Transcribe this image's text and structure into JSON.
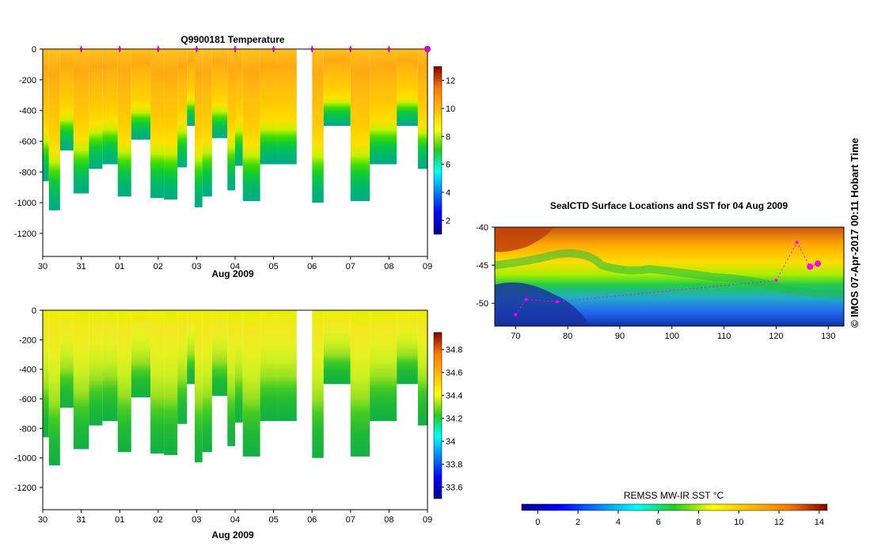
{
  "copyright": "© IMOS 07-Apr-2017 00:11 Hobart Time",
  "chart_data": [
    {
      "id": "temperature",
      "type": "heatmap",
      "title": "Q9900181  Temperature",
      "xlabel": "Aug 2009",
      "x_ticks": [
        "30",
        "31",
        "01",
        "02",
        "03",
        "04",
        "05",
        "06",
        "07",
        "08",
        "09"
      ],
      "x_range_days": [
        0,
        10
      ],
      "ylim": [
        -1350,
        0
      ],
      "y_ticks": [
        0,
        -200,
        -400,
        -600,
        -800,
        -1000,
        -1200
      ],
      "colorbar": {
        "min": 1,
        "max": 13,
        "ticks": [
          2,
          4,
          6,
          8,
          10,
          12
        ]
      },
      "profile_markers_days": [
        1,
        2,
        3,
        4,
        5,
        6,
        7,
        8,
        9,
        10
      ],
      "profiles": [
        {
          "t": 0.0,
          "depth": 860
        },
        {
          "t": 0.16,
          "depth": 1050
        },
        {
          "t": 0.45,
          "depth": 660
        },
        {
          "t": 0.8,
          "depth": 940
        },
        {
          "t": 1.2,
          "depth": 780
        },
        {
          "t": 1.55,
          "depth": 750
        },
        {
          "t": 1.95,
          "depth": 960
        },
        {
          "t": 2.3,
          "depth": 590
        },
        {
          "t": 2.8,
          "depth": 970
        },
        {
          "t": 3.15,
          "depth": 980
        },
        {
          "t": 3.5,
          "depth": 770
        },
        {
          "t": 3.75,
          "depth": 500
        },
        {
          "t": 3.95,
          "depth": 1030
        },
        {
          "t": 4.15,
          "depth": 960
        },
        {
          "t": 4.4,
          "depth": 580
        },
        {
          "t": 4.8,
          "depth": 920
        },
        {
          "t": 5.0,
          "depth": 760
        },
        {
          "t": 5.2,
          "depth": 990
        },
        {
          "t": 5.65,
          "depth": 750
        },
        {
          "t": 6.1,
          "depth": 750
        },
        {
          "t": 7.0,
          "depth": 1000
        },
        {
          "t": 7.3,
          "depth": 500
        },
        {
          "t": 8.0,
          "depth": 990
        },
        {
          "t": 8.5,
          "depth": 750
        },
        {
          "t": 9.2,
          "depth": 500
        },
        {
          "t": 9.75,
          "depth": 780
        }
      ],
      "gap_days": [
        6.6,
        7.0
      ]
    },
    {
      "id": "salinity",
      "type": "heatmap",
      "title": "",
      "xlabel": "Aug 2009",
      "x_ticks": [
        "30",
        "31",
        "01",
        "02",
        "03",
        "04",
        "05",
        "06",
        "07",
        "08",
        "09"
      ],
      "x_range_days": [
        0,
        10
      ],
      "ylim": [
        -1350,
        0
      ],
      "y_ticks": [
        0,
        -200,
        -400,
        -600,
        -800,
        -1000,
        -1200
      ],
      "colorbar": {
        "min": 33.5,
        "max": 34.95,
        "ticks": [
          33.6,
          33.8,
          34,
          34.2,
          34.4,
          34.6,
          34.8
        ]
      }
    },
    {
      "id": "sst_map",
      "type": "heatmap",
      "title": "SealCTD Surface Locations and SST for 04 Aug 2009",
      "x_ticks": [
        "70",
        "80",
        "90",
        "100",
        "110",
        "120",
        "130"
      ],
      "x_values": [
        70,
        80,
        90,
        100,
        110,
        120,
        130
      ],
      "xlim": [
        66,
        133
      ],
      "y_ticks": [
        "-40",
        "-45",
        "-50"
      ],
      "y_values": [
        -40,
        -45,
        -50
      ],
      "ylim": [
        -53,
        -40
      ],
      "colorbar": {
        "label": "REMSS MW-IR SST °C",
        "min": -0.8,
        "max": 14.4,
        "ticks": [
          "0",
          "2",
          "4",
          "6",
          "8",
          "10",
          "12",
          "14"
        ],
        "tick_values": [
          0,
          2,
          4,
          6,
          8,
          10,
          12,
          14
        ]
      },
      "seal_track": [
        {
          "lon": 70,
          "lat": -51.5
        },
        {
          "lon": 72,
          "lat": -49.5
        },
        {
          "lon": 78,
          "lat": -49.8
        },
        {
          "lon": 120,
          "lat": -47.0
        },
        {
          "lon": 124,
          "lat": -42.0
        },
        {
          "lon": 126.5,
          "lat": -45.2
        },
        {
          "lon": 128,
          "lat": -44.8
        }
      ]
    }
  ]
}
